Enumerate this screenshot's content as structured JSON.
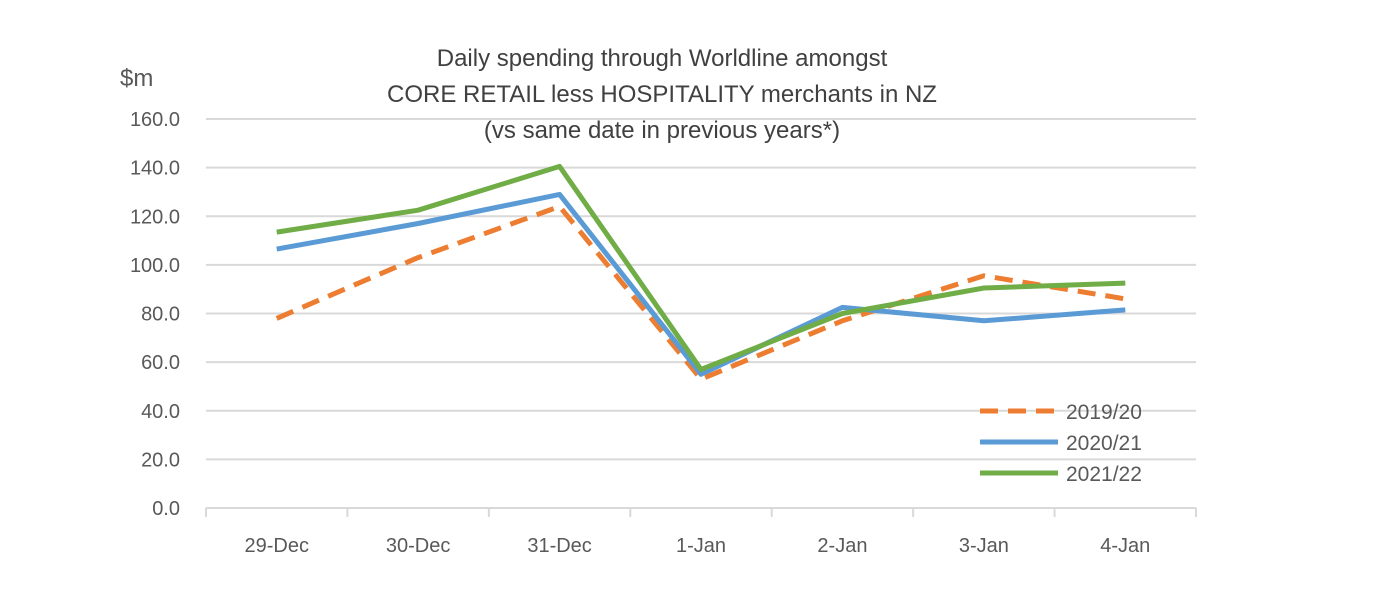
{
  "chart_data": {
    "type": "line",
    "title_lines": [
      "Daily spending through Worldline amongst",
      "CORE RETAIL less HOSPITALITY merchants in NZ",
      "(vs same date in previous years*)"
    ],
    "ylabel": "$m",
    "xlabel": "",
    "ylim": [
      0,
      160
    ],
    "yticks": [
      "0.0",
      "20.0",
      "40.0",
      "60.0",
      "80.0",
      "100.0",
      "120.0",
      "140.0",
      "160.0"
    ],
    "grid": true,
    "legend_position": "bottom-right",
    "categories": [
      "29-Dec",
      "30-Dec",
      "31-Dec",
      "1-Jan",
      "2-Jan",
      "3-Jan",
      "4-Jan"
    ],
    "series": [
      {
        "name": "2019/20",
        "values": [
          78,
          103,
          124,
          53,
          77,
          95.5,
          86
        ],
        "color": "#ed7d31",
        "dashed": true
      },
      {
        "name": "2020/21",
        "values": [
          106.5,
          117,
          129,
          55,
          82.5,
          77,
          81.5
        ],
        "color": "#5b9bd5",
        "dashed": false
      },
      {
        "name": "2021/22",
        "values": [
          113.5,
          122.5,
          140.5,
          57,
          80,
          90.5,
          92.5
        ],
        "color": "#70ad47",
        "dashed": false
      }
    ]
  }
}
